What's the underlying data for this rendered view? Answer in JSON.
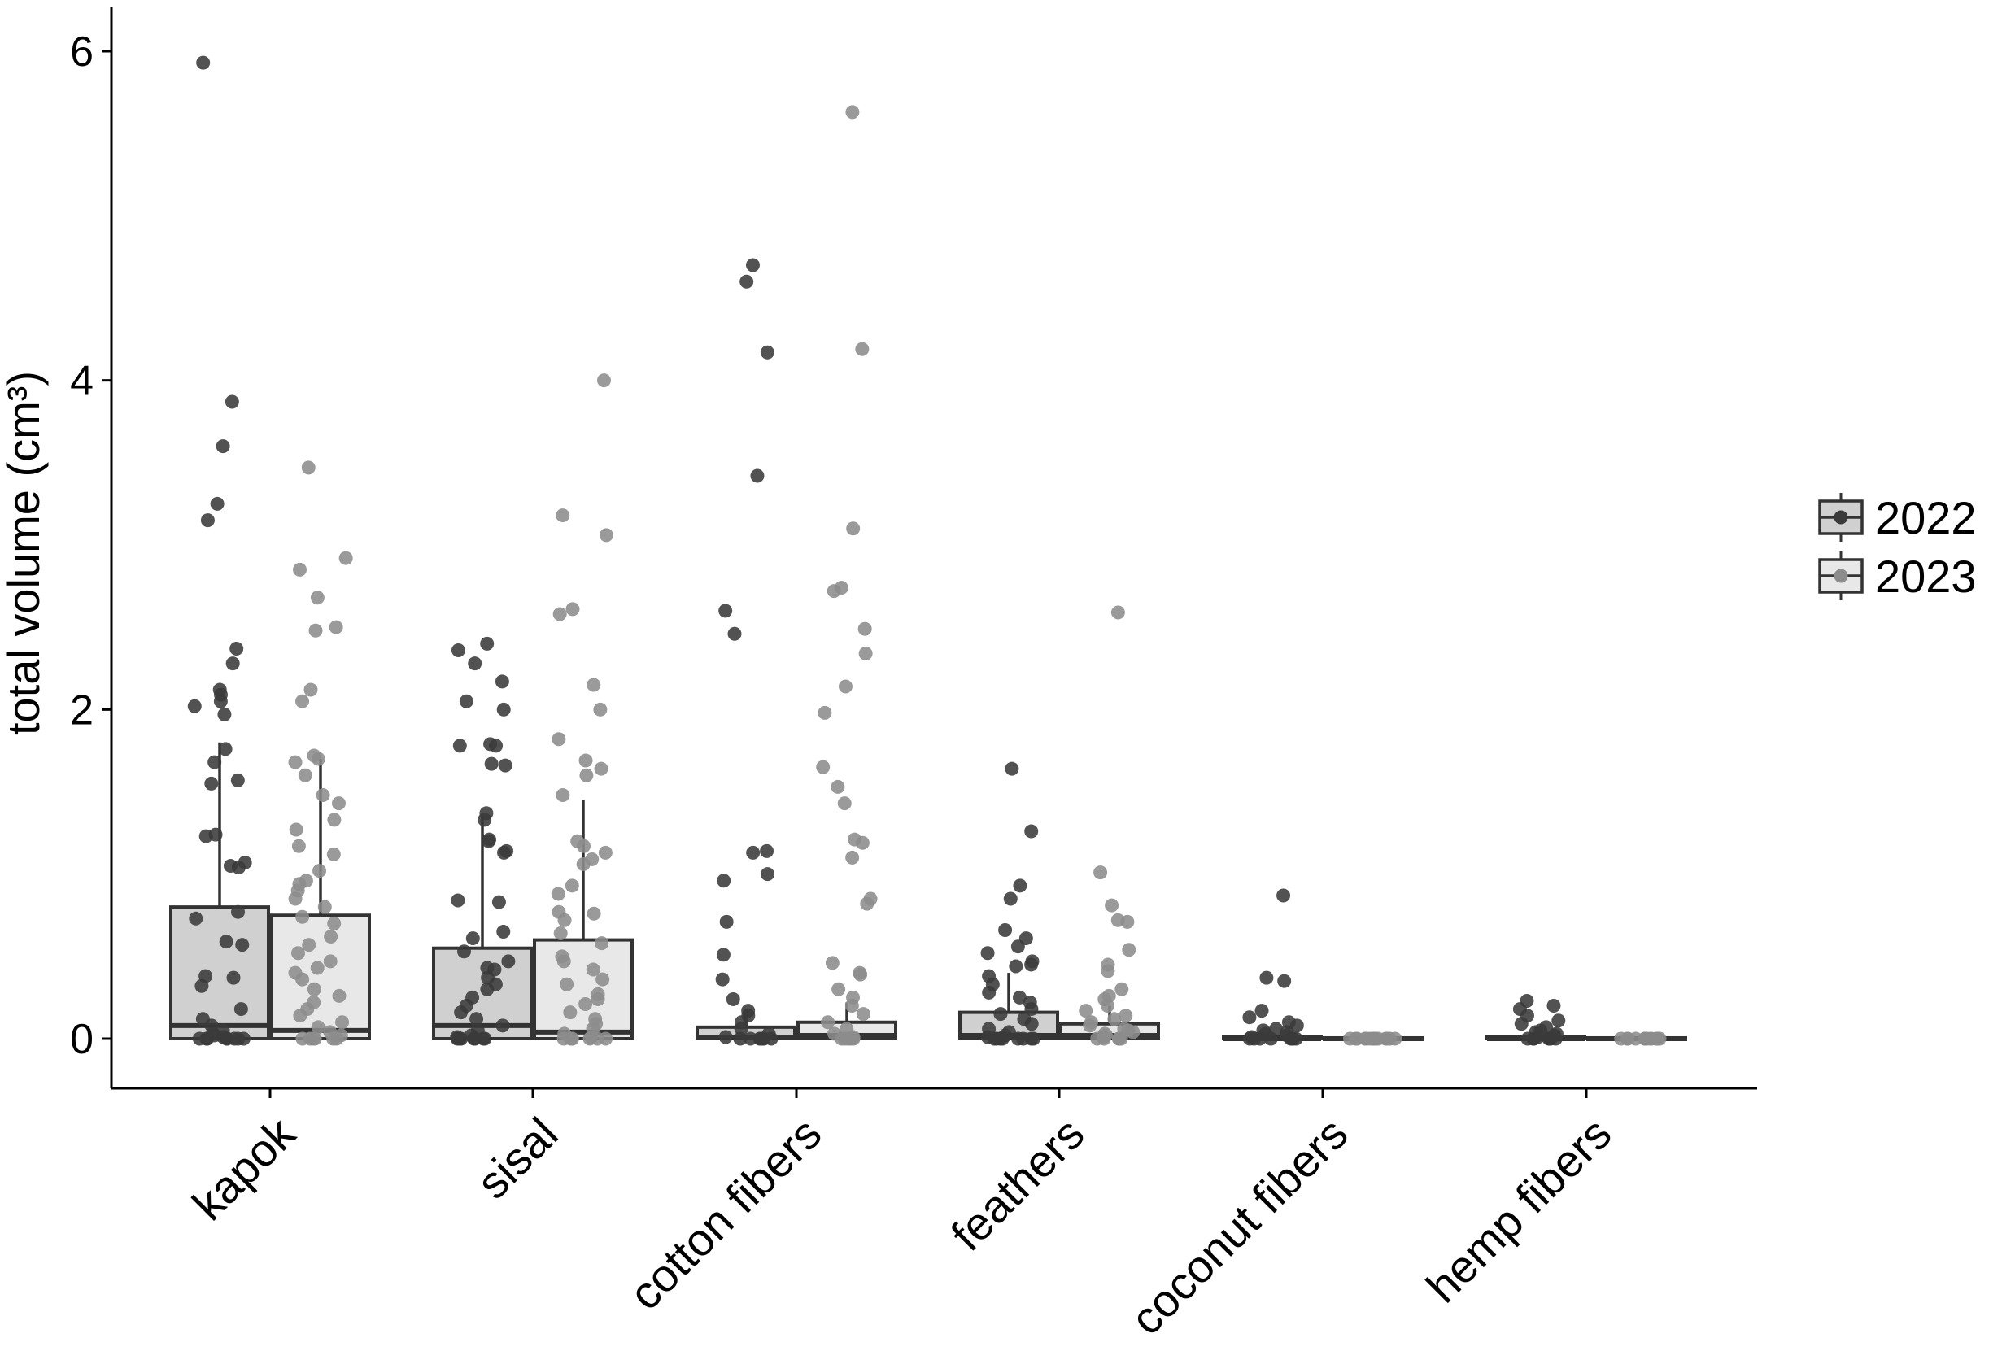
{
  "chart_data": {
    "type": "boxplot",
    "title": "",
    "xlabel": "",
    "ylabel": "total volume (cm³)",
    "ylim": [
      -0.3,
      6.2
    ],
    "yticks": [
      0,
      2,
      4,
      6
    ],
    "grid": false,
    "legend_position": "right",
    "categories": [
      "kapok",
      "sisal",
      "cotton fibers",
      "feathers",
      "coconut fibers",
      "hemp fibers"
    ],
    "series": [
      {
        "name": "2022",
        "fill": "#d0d0d0",
        "point_color": "#3a3a3a",
        "boxes": [
          {
            "q1": 0,
            "median": 0.08,
            "q3": 0.8,
            "whisker_high": 1.8
          },
          {
            "q1": 0,
            "median": 0.08,
            "q3": 0.55,
            "whisker_high": 1.35
          },
          {
            "q1": 0,
            "median": 0.01,
            "q3": 0.07,
            "whisker_high": 0.18
          },
          {
            "q1": 0,
            "median": 0.02,
            "q3": 0.16,
            "whisker_high": 0.4
          },
          {
            "q1": 0,
            "median": 0,
            "q3": 0.01,
            "whisker_high": 0.02
          },
          {
            "q1": 0,
            "median": 0,
            "q3": 0.01,
            "whisker_high": 0.02
          }
        ],
        "points": [
          [
            5.93,
            3.87,
            3.6,
            3.25,
            3.15,
            2.37,
            2.28,
            2.12,
            2.09,
            2.05,
            2.02,
            1.97,
            1.76,
            1.68,
            1.57,
            1.55,
            1.24,
            1.23,
            1.07,
            1.05,
            1.04,
            0.77,
            0.73,
            0.59,
            0.57,
            0.38,
            0.37,
            0.32,
            0.18,
            0.12,
            0.08,
            0.05,
            0.03,
            0.02,
            0.01,
            0,
            0,
            0,
            0,
            0,
            0,
            0,
            0
          ],
          [
            2.4,
            2.36,
            2.28,
            2.17,
            2.05,
            2.0,
            1.79,
            1.78,
            1.78,
            1.67,
            1.66,
            1.37,
            1.33,
            1.21,
            1.2,
            1.14,
            1.13,
            0.84,
            0.83,
            0.65,
            0.61,
            0.53,
            0.47,
            0.43,
            0.42,
            0.37,
            0.33,
            0.3,
            0.25,
            0.2,
            0.16,
            0.12,
            0.08,
            0.05,
            0.02,
            0.01,
            0,
            0,
            0,
            0,
            0,
            0,
            0
          ],
          [
            4.7,
            4.6,
            4.17,
            3.42,
            2.6,
            2.46,
            1.14,
            1.13,
            1.0,
            0.96,
            0.71,
            0.51,
            0.36,
            0.24,
            0.17,
            0.14,
            0.1,
            0.06,
            0.03,
            0.01,
            0,
            0,
            0,
            0,
            0,
            0,
            0
          ],
          [
            1.64,
            1.26,
            0.93,
            0.85,
            0.66,
            0.61,
            0.56,
            0.52,
            0.47,
            0.45,
            0.44,
            0.38,
            0.33,
            0.28,
            0.25,
            0.22,
            0.18,
            0.15,
            0.12,
            0.09,
            0.06,
            0.04,
            0.02,
            0.01,
            0,
            0,
            0,
            0,
            0,
            0,
            0,
            0
          ],
          [
            0.87,
            0.37,
            0.35,
            0.17,
            0.13,
            0.1,
            0.08,
            0.06,
            0.05,
            0.04,
            0.03,
            0.02,
            0.01,
            0,
            0,
            0,
            0,
            0,
            0,
            0,
            0
          ],
          [
            0.23,
            0.2,
            0.18,
            0.14,
            0.11,
            0.09,
            0.07,
            0.05,
            0.04,
            0.03,
            0.02,
            0.01,
            0,
            0,
            0,
            0,
            0,
            0,
            0
          ]
        ]
      },
      {
        "name": "2023",
        "fill": "#e8e8e8",
        "point_color": "#8c8c8c",
        "boxes": [
          {
            "q1": 0,
            "median": 0.05,
            "q3": 0.75,
            "whisker_high": 1.7
          },
          {
            "q1": 0,
            "median": 0.04,
            "q3": 0.6,
            "whisker_high": 1.45
          },
          {
            "q1": 0,
            "median": 0.02,
            "q3": 0.1,
            "whisker_high": 0.22
          },
          {
            "q1": 0,
            "median": 0.02,
            "q3": 0.09,
            "whisker_high": 0.2
          },
          {
            "q1": 0,
            "median": 0,
            "q3": 0.005,
            "whisker_high": 0.01
          },
          {
            "q1": 0,
            "median": 0,
            "q3": 0.005,
            "whisker_high": 0.01
          }
        ],
        "points": [
          [
            3.47,
            2.92,
            2.85,
            2.68,
            2.5,
            2.48,
            2.12,
            2.05,
            1.72,
            1.7,
            1.68,
            1.6,
            1.48,
            1.43,
            1.33,
            1.27,
            1.17,
            1.12,
            1.02,
            0.96,
            0.94,
            0.9,
            0.85,
            0.8,
            0.74,
            0.7,
            0.62,
            0.57,
            0.52,
            0.47,
            0.43,
            0.4,
            0.36,
            0.3,
            0.26,
            0.22,
            0.18,
            0.14,
            0.1,
            0.07,
            0.04,
            0.02,
            0,
            0,
            0,
            0,
            0,
            0
          ],
          [
            4.0,
            3.18,
            3.06,
            2.61,
            2.58,
            2.15,
            2.0,
            1.82,
            1.69,
            1.64,
            1.6,
            1.48,
            1.2,
            1.17,
            1.13,
            1.09,
            1.06,
            0.93,
            0.88,
            0.77,
            0.76,
            0.72,
            0.64,
            0.58,
            0.5,
            0.47,
            0.42,
            0.36,
            0.33,
            0.27,
            0.24,
            0.21,
            0.16,
            0.12,
            0.09,
            0.06,
            0.03,
            0.01,
            0,
            0,
            0,
            0,
            0,
            0
          ],
          [
            5.63,
            4.19,
            3.1,
            2.74,
            2.72,
            2.49,
            2.34,
            2.14,
            1.98,
            1.65,
            1.53,
            1.43,
            1.21,
            1.19,
            1.1,
            0.85,
            0.82,
            0.46,
            0.4,
            0.39,
            0.3,
            0.25,
            0.2,
            0.15,
            0.1,
            0.06,
            0.03,
            0.01,
            0,
            0,
            0,
            0,
            0
          ],
          [
            2.59,
            1.01,
            0.81,
            0.72,
            0.71,
            0.54,
            0.45,
            0.41,
            0.3,
            0.26,
            0.24,
            0.2,
            0.17,
            0.14,
            0.12,
            0.1,
            0.08,
            0.06,
            0.05,
            0.04,
            0.03,
            0.02,
            0.01,
            0,
            0,
            0,
            0,
            0
          ],
          [
            0,
            0,
            0,
            0,
            0,
            0,
            0,
            0,
            0,
            0,
            0,
            0,
            0,
            0,
            0
          ],
          [
            0,
            0,
            0,
            0,
            0,
            0,
            0,
            0,
            0,
            0,
            0,
            0,
            0,
            0
          ]
        ]
      }
    ]
  }
}
